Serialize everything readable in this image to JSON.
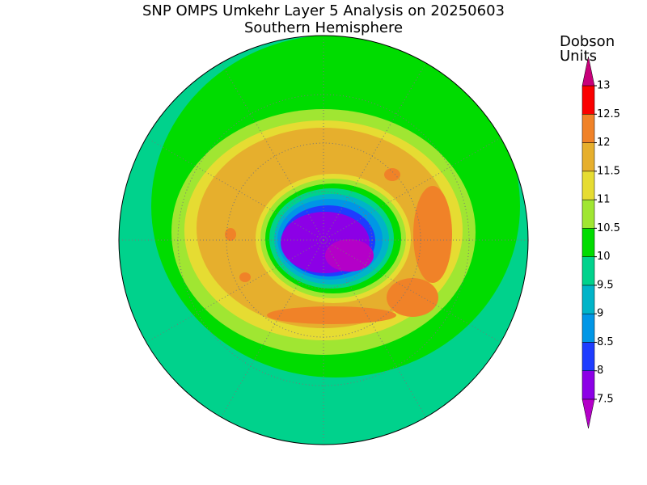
{
  "title": "SNP OMPS Umkehr Layer 5 Analysis on 20250603",
  "subtitle": "Southern Hemisphere",
  "colorbar": {
    "label_lines": [
      "Dobson",
      "Units"
    ],
    "ticks": [
      7.5,
      8,
      8.5,
      9,
      9.5,
      10,
      10.5,
      11,
      11.5,
      12,
      12.5,
      13
    ],
    "colors": [
      "#b400c8",
      "#8c00e6",
      "#1e3cff",
      "#0096e6",
      "#00b4c8",
      "#00d28c",
      "#00dc00",
      "#a0e632",
      "#e6dc32",
      "#e6af2d",
      "#f08228",
      "#fa0000",
      "#c8007a"
    ]
  }
}
